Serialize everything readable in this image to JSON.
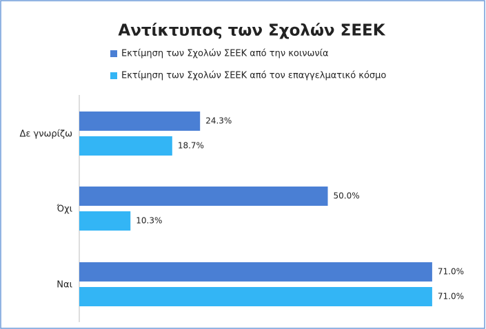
{
  "chart_data": {
    "type": "bar",
    "orientation": "horizontal",
    "title": "Αντίκτυπος των Σχολών ΣΕΕΚ",
    "categories": [
      "Δε γνωρίζω",
      "Όχι",
      "Ναι"
    ],
    "series": [
      {
        "name": "Εκτίμηση των Σχολών ΣΕΕΚ από την κοινωνία",
        "color": "#4a7fd4",
        "values": [
          24.3,
          50.0,
          71.0
        ],
        "value_labels": [
          "24.3%",
          "50.0%",
          "71.0%"
        ]
      },
      {
        "name": "Εκτίμηση των Σχολών ΣΕΕΚ από τον επαγγελματικό κόσμο",
        "color": "#33b5f5",
        "values": [
          18.7,
          10.3,
          71.0
        ],
        "value_labels": [
          "18.7%",
          "10.3%",
          "71.0%"
        ]
      }
    ]
  }
}
